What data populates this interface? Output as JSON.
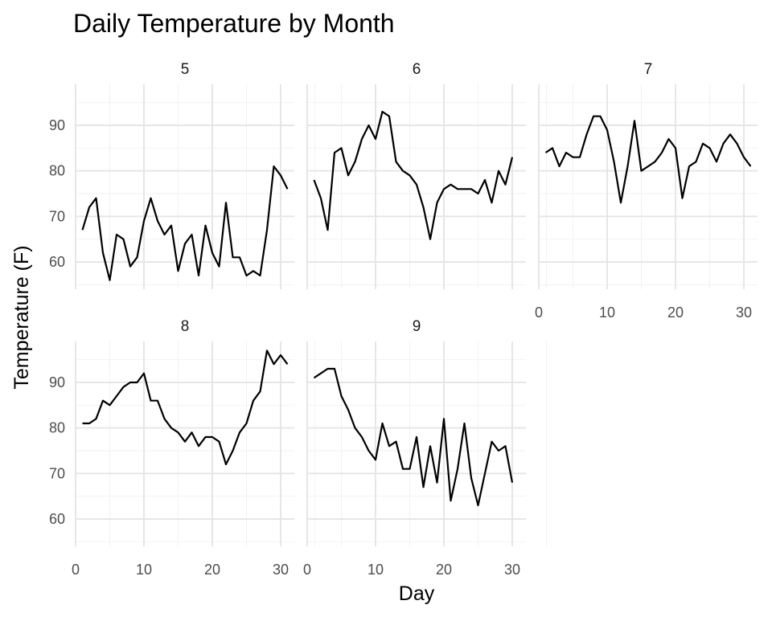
{
  "chart_data": {
    "type": "line",
    "title": "Daily Temperature by Month",
    "xlabel": "Day",
    "ylabel": "Temperature (F)",
    "xlim": [
      0,
      32
    ],
    "ylim": [
      54,
      99
    ],
    "x_ticks": [
      0,
      10,
      20,
      30
    ],
    "y_ticks": [
      60,
      70,
      80,
      90
    ],
    "grid": true,
    "facets": [
      {
        "label": "5",
        "x_start": 1,
        "values": [
          67,
          72,
          74,
          62,
          56,
          66,
          65,
          59,
          61,
          69,
          74,
          69,
          66,
          68,
          58,
          64,
          66,
          57,
          68,
          62,
          59,
          73,
          61,
          61,
          57,
          58,
          57,
          67,
          81,
          79,
          76
        ]
      },
      {
        "label": "6",
        "x_start": 1,
        "values": [
          78,
          74,
          67,
          84,
          85,
          79,
          82,
          87,
          90,
          87,
          93,
          92,
          82,
          80,
          79,
          77,
          72,
          65,
          73,
          76,
          77,
          76,
          76,
          76,
          75,
          78,
          73,
          80,
          77,
          83
        ]
      },
      {
        "label": "7",
        "x_start": 1,
        "values": [
          84,
          85,
          81,
          84,
          83,
          83,
          88,
          92,
          92,
          89,
          82,
          73,
          81,
          91,
          80,
          81,
          82,
          84,
          87,
          85,
          74,
          81,
          82,
          86,
          85,
          82,
          86,
          88,
          86,
          83,
          81
        ]
      },
      {
        "label": "8",
        "x_start": 1,
        "values": [
          81,
          81,
          82,
          86,
          85,
          87,
          89,
          90,
          90,
          92,
          86,
          86,
          82,
          80,
          79,
          77,
          79,
          76,
          78,
          78,
          77,
          72,
          75,
          79,
          81,
          86,
          88,
          97,
          94,
          96,
          94
        ]
      },
      {
        "label": "9",
        "x_start": 1,
        "values": [
          91,
          92,
          93,
          93,
          87,
          84,
          80,
          78,
          75,
          73,
          81,
          76,
          77,
          71,
          71,
          78,
          67,
          76,
          68,
          82,
          64,
          71,
          81,
          69,
          63,
          70,
          77,
          75,
          76,
          68
        ]
      }
    ]
  }
}
